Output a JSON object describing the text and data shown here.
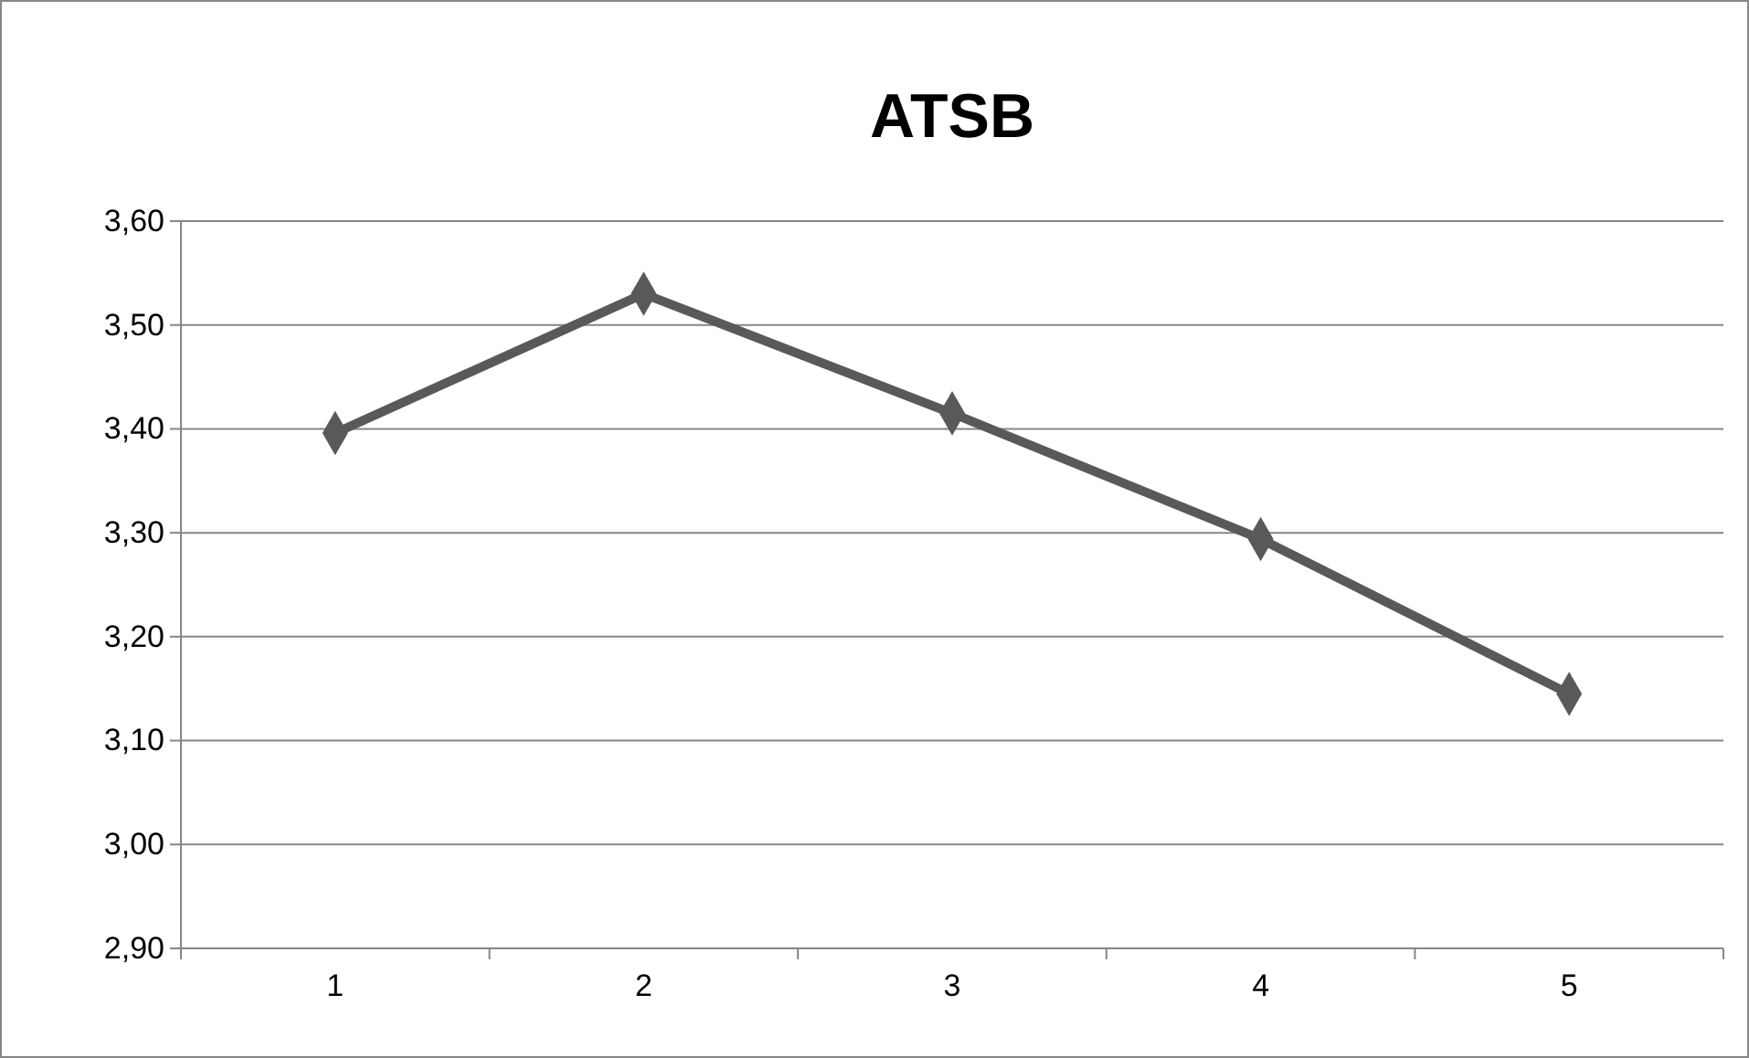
{
  "chart_data": {
    "type": "line",
    "title": "ATSB",
    "categories": [
      "1",
      "2",
      "3",
      "4",
      "5"
    ],
    "series": [
      {
        "color": "#595959",
        "values": [
          3.396,
          3.53,
          3.415,
          3.294,
          3.145
        ]
      }
    ],
    "ylim": [
      2.9,
      3.6
    ],
    "yticks": [
      {
        "value": 2.9,
        "label": "2,90"
      },
      {
        "value": 3.0,
        "label": "3,00"
      },
      {
        "value": 3.1,
        "label": "3,10"
      },
      {
        "value": 3.2,
        "label": "3,20"
      },
      {
        "value": 3.3,
        "label": "3,30"
      },
      {
        "value": 3.4,
        "label": "3,40"
      },
      {
        "value": 3.5,
        "label": "3,50"
      },
      {
        "value": 3.6,
        "label": "3,60"
      }
    ],
    "grid": "y",
    "marker": "diamond",
    "line_style": "solid"
  }
}
